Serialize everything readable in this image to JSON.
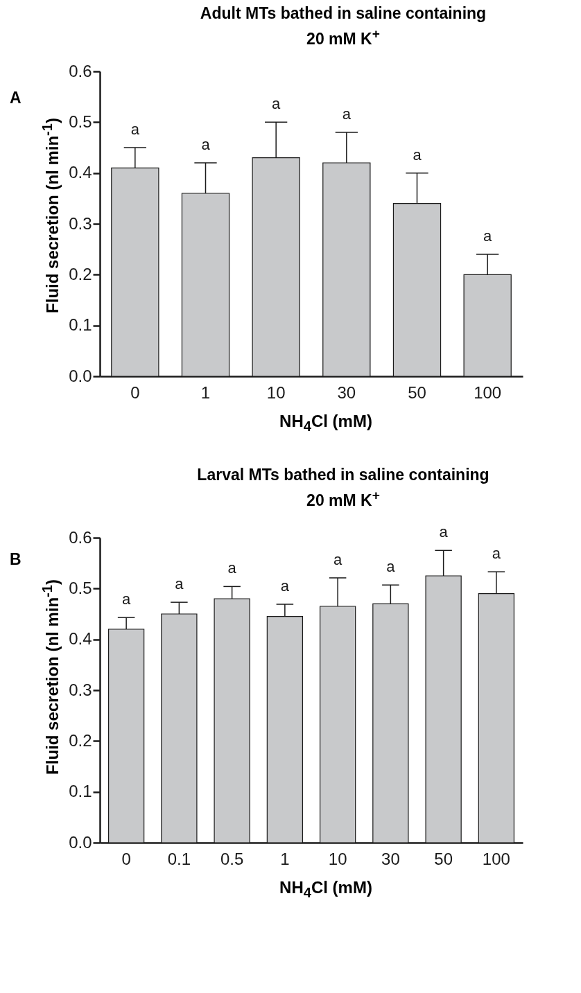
{
  "chart_data": [
    {
      "type": "bar",
      "title": "Adult MTs bathed in saline containing 20 mM K$^{+}$",
      "xlabel": "NH$_{4}$Cl (mM)",
      "ylabel": "Fluid secretion (nl min$^{-1}$)",
      "categories": [
        "0",
        "1",
        "10",
        "30",
        "50",
        "100"
      ],
      "series": [
        {
          "color": "#c8c9cb",
          "values": [
            0.41,
            0.36,
            0.43,
            0.42,
            0.34,
            0.2
          ],
          "errors": [
            [
              0.41,
              0.45
            ],
            [
              0.36,
              0.42
            ],
            [
              0.43,
              0.5
            ],
            [
              0.42,
              0.48
            ],
            [
              0.34,
              0.4
            ],
            [
              0.2,
              0.24
            ]
          ]
        }
      ],
      "ylim": [
        0,
        0.6
      ],
      "yticks": [
        {
          "value": 0,
          "label": "0.0"
        },
        0.1,
        0.2,
        0.3,
        0.4,
        0.5,
        0.6
      ],
      "grid": false,
      "annotations": [
        "A",
        {
          "text": "a",
          "x": "0",
          "y": 0.45
        },
        {
          "text": "a",
          "x": "1",
          "y": 0.42
        },
        {
          "text": "a",
          "x": "10",
          "y": 0.5
        },
        {
          "text": "a",
          "x": "30",
          "y": 0.48
        },
        {
          "text": "a",
          "x": "50",
          "y": 0.4
        },
        {
          "text": "a",
          "x": "100",
          "y": 0.24
        }
      ]
    },
    {
      "type": "bar",
      "title": "Larval MTs bathed in saline containing 20 mM K$^{+}$",
      "xlabel": "NH$_{4}$Cl (mM)",
      "ylabel": "Fluid secretion (nl min$^{-1}$)",
      "categories": [
        "0",
        "0.1",
        "0.5",
        "1",
        "10",
        "30",
        "50",
        "100"
      ],
      "series": [
        {
          "color": "#c8c9cb",
          "values": [
            0.42,
            0.45,
            0.48,
            0.445,
            0.465,
            0.47,
            0.525,
            0.49
          ],
          "errors": [
            [
              0.42,
              0.443
            ],
            [
              0.45,
              0.473
            ],
            [
              0.48,
              0.504
            ],
            [
              0.445,
              0.469
            ],
            [
              0.465,
              0.521
            ],
            [
              0.47,
              0.507
            ],
            [
              0.525,
              0.575
            ],
            [
              0.49,
              0.533
            ]
          ]
        }
      ],
      "ylim": [
        0,
        0.6
      ],
      "yticks": [
        {
          "value": 0,
          "label": "0.0"
        },
        0.1,
        0.2,
        0.3,
        0.4,
        0.5,
        0.6
      ],
      "grid": false,
      "annotations": [
        "B",
        {
          "text": "a",
          "x": "0",
          "y": 0.443
        },
        {
          "text": "a",
          "x": "0.1",
          "y": 0.473
        },
        {
          "text": "a",
          "x": "0.5",
          "y": 0.504
        },
        {
          "text": "a",
          "x": "1",
          "y": 0.469
        },
        {
          "text": "a",
          "x": "10",
          "y": 0.521
        },
        {
          "text": "a",
          "x": "30",
          "y": 0.507
        },
        {
          "text": "a",
          "x": "50",
          "y": 0.575
        },
        {
          "text": "a",
          "x": "100",
          "y": 0.533
        }
      ]
    }
  ]
}
